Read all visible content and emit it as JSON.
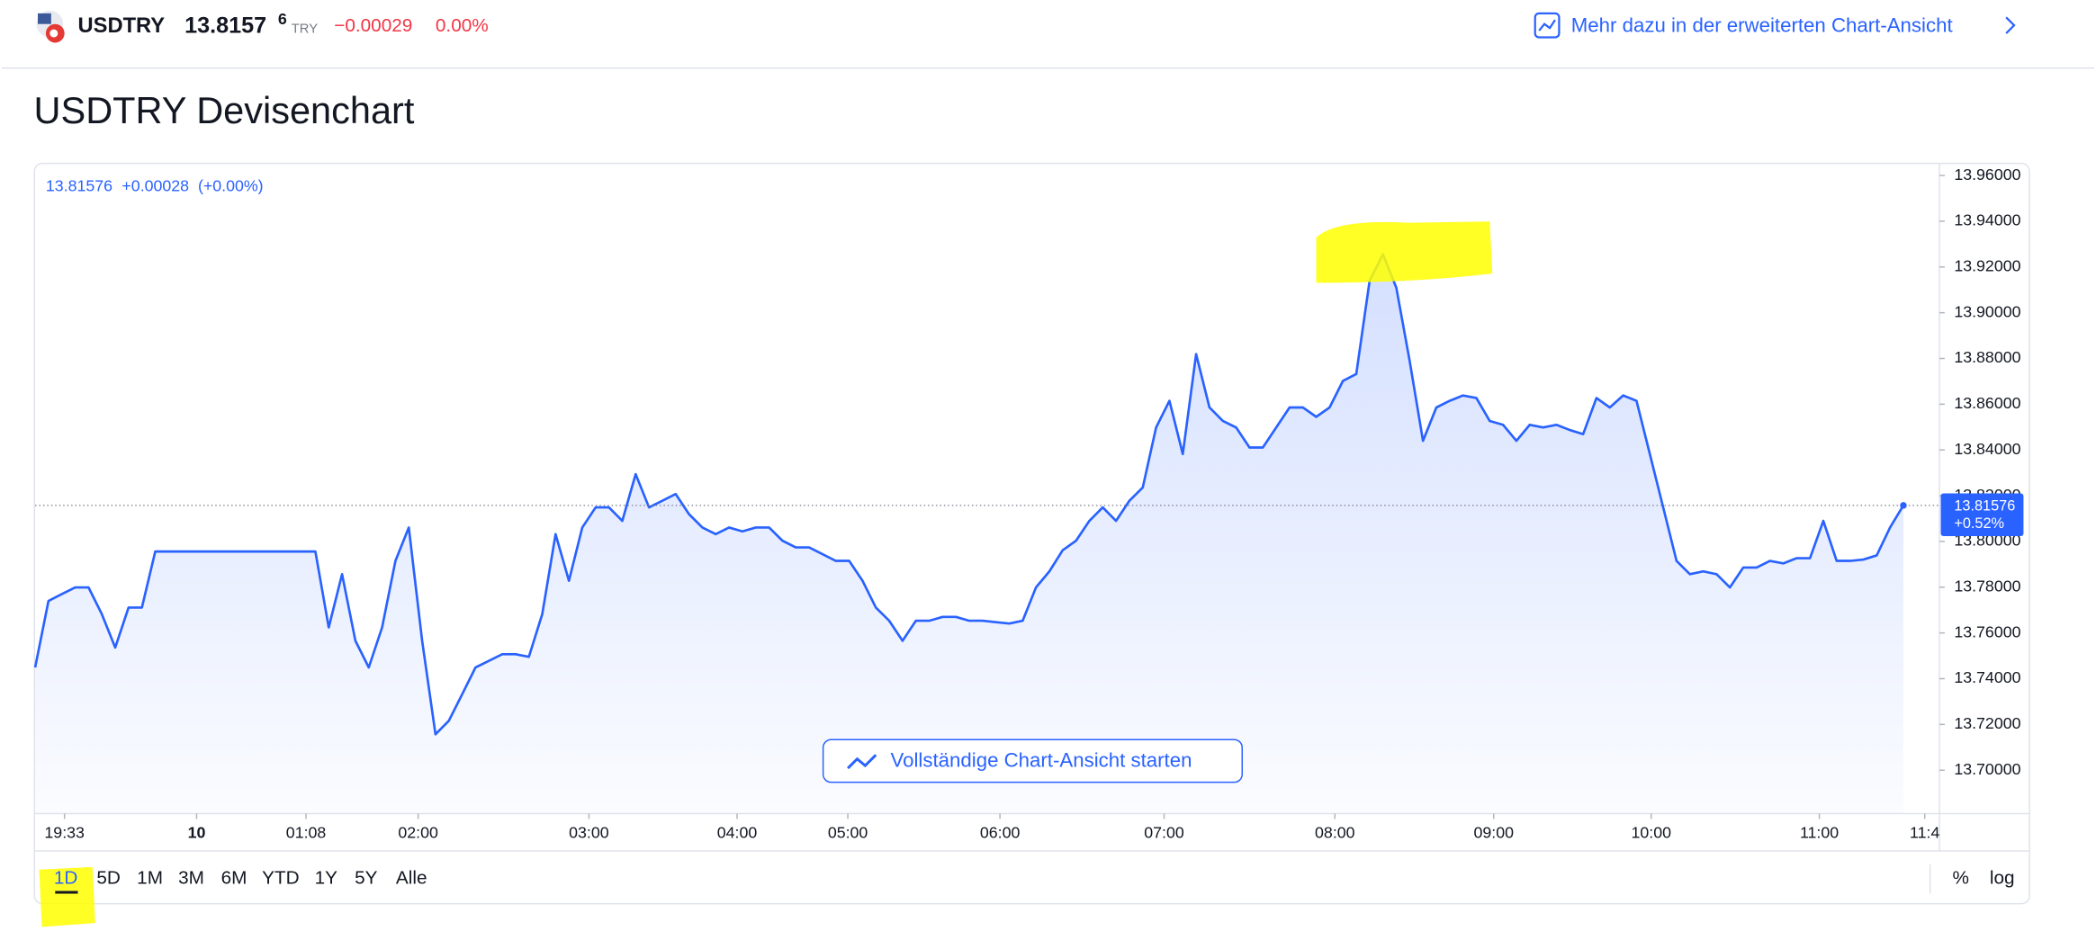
{
  "header": {
    "symbol": "USDTRY",
    "price": "13.8157",
    "price_suffix": "6",
    "currency": "TRY",
    "change": "−0.00029",
    "change_pct": "0.00%",
    "link": "Mehr dazu in der erweiterten Chart-Ansicht"
  },
  "heading": "USDTRY Devisenchart",
  "chart_data": {
    "type": "line",
    "legend_price": "13.81576",
    "legend_change": "+0.00028",
    "legend_pct": "(+0.00%)",
    "price_tag": "13.81576",
    "price_tag_change": "+0.52%",
    "button": "Vollständige Chart-Ansicht starten",
    "series": [
      {
        "name": "USDTRY",
        "color": "#2962ff",
        "values": [
          13.7449,
          13.774,
          13.777,
          13.7799,
          13.7799,
          13.7682,
          13.7536,
          13.7711,
          13.7711,
          13.7956,
          13.7956,
          13.7956,
          13.7956,
          13.7956,
          13.7956,
          13.7956,
          13.7956,
          13.7956,
          13.7956,
          13.7956,
          13.7956,
          13.7956,
          13.7624,
          13.7857,
          13.7566,
          13.7449,
          13.7624,
          13.7915,
          13.8061,
          13.7566,
          13.7157,
          13.7216,
          13.7332,
          13.7449,
          13.7478,
          13.7507,
          13.7507,
          13.7496,
          13.7682,
          13.8032,
          13.7828,
          13.8061,
          13.8149,
          13.8149,
          13.809,
          13.8294,
          13.8149,
          13.8178,
          13.8207,
          13.8119,
          13.8061,
          13.8032,
          13.8061,
          13.8044,
          13.8061,
          13.8061,
          13.8003,
          13.7974,
          13.7974,
          13.7944,
          13.7915,
          13.7915,
          13.7828,
          13.7711,
          13.7653,
          13.7566,
          13.7653,
          13.7653,
          13.767,
          13.767,
          13.7653,
          13.7653,
          13.7647,
          13.7641,
          13.7653,
          13.7799,
          13.7869,
          13.7962,
          13.8003,
          13.809,
          13.8149,
          13.809,
          13.8178,
          13.8236,
          13.8498,
          13.8615,
          13.8382,
          13.8819,
          13.8586,
          13.8527,
          13.8498,
          13.8411,
          13.8411,
          13.8498,
          13.8586,
          13.8586,
          13.8545,
          13.8586,
          13.8702,
          13.8732,
          13.914,
          13.9256,
          13.911,
          13.879,
          13.844,
          13.8586,
          13.8615,
          13.8638,
          13.8627,
          13.8527,
          13.851,
          13.844,
          13.851,
          13.8498,
          13.851,
          13.8487,
          13.8469,
          13.8627,
          13.8586,
          13.8638,
          13.8615,
          13.8382,
          13.8149,
          13.7915,
          13.7857,
          13.7869,
          13.7857,
          13.7799,
          13.7886,
          13.7886,
          13.7915,
          13.7904,
          13.7927,
          13.7927,
          13.809,
          13.7915,
          13.7915,
          13.7921,
          13.7939,
          13.8061,
          13.81576
        ]
      }
    ],
    "xlim": [
      0,
      142.7
    ],
    "xticks": [
      {
        "value": 2.2,
        "label": "19:33"
      },
      {
        "value": 12.1,
        "label": "10"
      },
      {
        "value": 20.3,
        "label": "01:08"
      },
      {
        "value": 28.7,
        "label": "02:00"
      },
      {
        "value": 41.5,
        "label": "03:00"
      },
      {
        "value": 52.6,
        "label": "04:00"
      },
      {
        "value": 60.9,
        "label": "05:00"
      },
      {
        "value": 72.3,
        "label": "06:00"
      },
      {
        "value": 84.6,
        "label": "07:00"
      },
      {
        "value": 97.4,
        "label": "08:00"
      },
      {
        "value": 109.3,
        "label": "09:00"
      },
      {
        "value": 121.1,
        "label": "10:00"
      },
      {
        "value": 133.7,
        "label": "11:00"
      },
      {
        "value": 141.6,
        "label": "11:4"
      }
    ],
    "ylim": [
      13.681,
      13.965
    ],
    "yticks": [
      {
        "value": 13.7,
        "label": "13.70000"
      },
      {
        "value": 13.72,
        "label": "13.72000"
      },
      {
        "value": 13.74,
        "label": "13.74000"
      },
      {
        "value": 13.76,
        "label": "13.76000"
      },
      {
        "value": 13.78,
        "label": "13.78000"
      },
      {
        "value": 13.8,
        "label": "13.80000"
      },
      {
        "value": 13.82,
        "label": "13.82000"
      },
      {
        "value": 13.84,
        "label": "13.84000"
      },
      {
        "value": 13.86,
        "label": "13.86000"
      },
      {
        "value": 13.88,
        "label": "13.88000"
      },
      {
        "value": 13.9,
        "label": "13.90000"
      },
      {
        "value": 13.92,
        "label": "13.92000"
      },
      {
        "value": 13.94,
        "label": "13.94000"
      },
      {
        "value": 13.96,
        "label": "13.96000"
      }
    ],
    "grid": false
  },
  "ranges": [
    "1D",
    "5D",
    "1M",
    "3M",
    "6M",
    "YTD",
    "1Y",
    "5Y",
    "Alle"
  ],
  "scale_buttons": [
    "%",
    "log"
  ]
}
